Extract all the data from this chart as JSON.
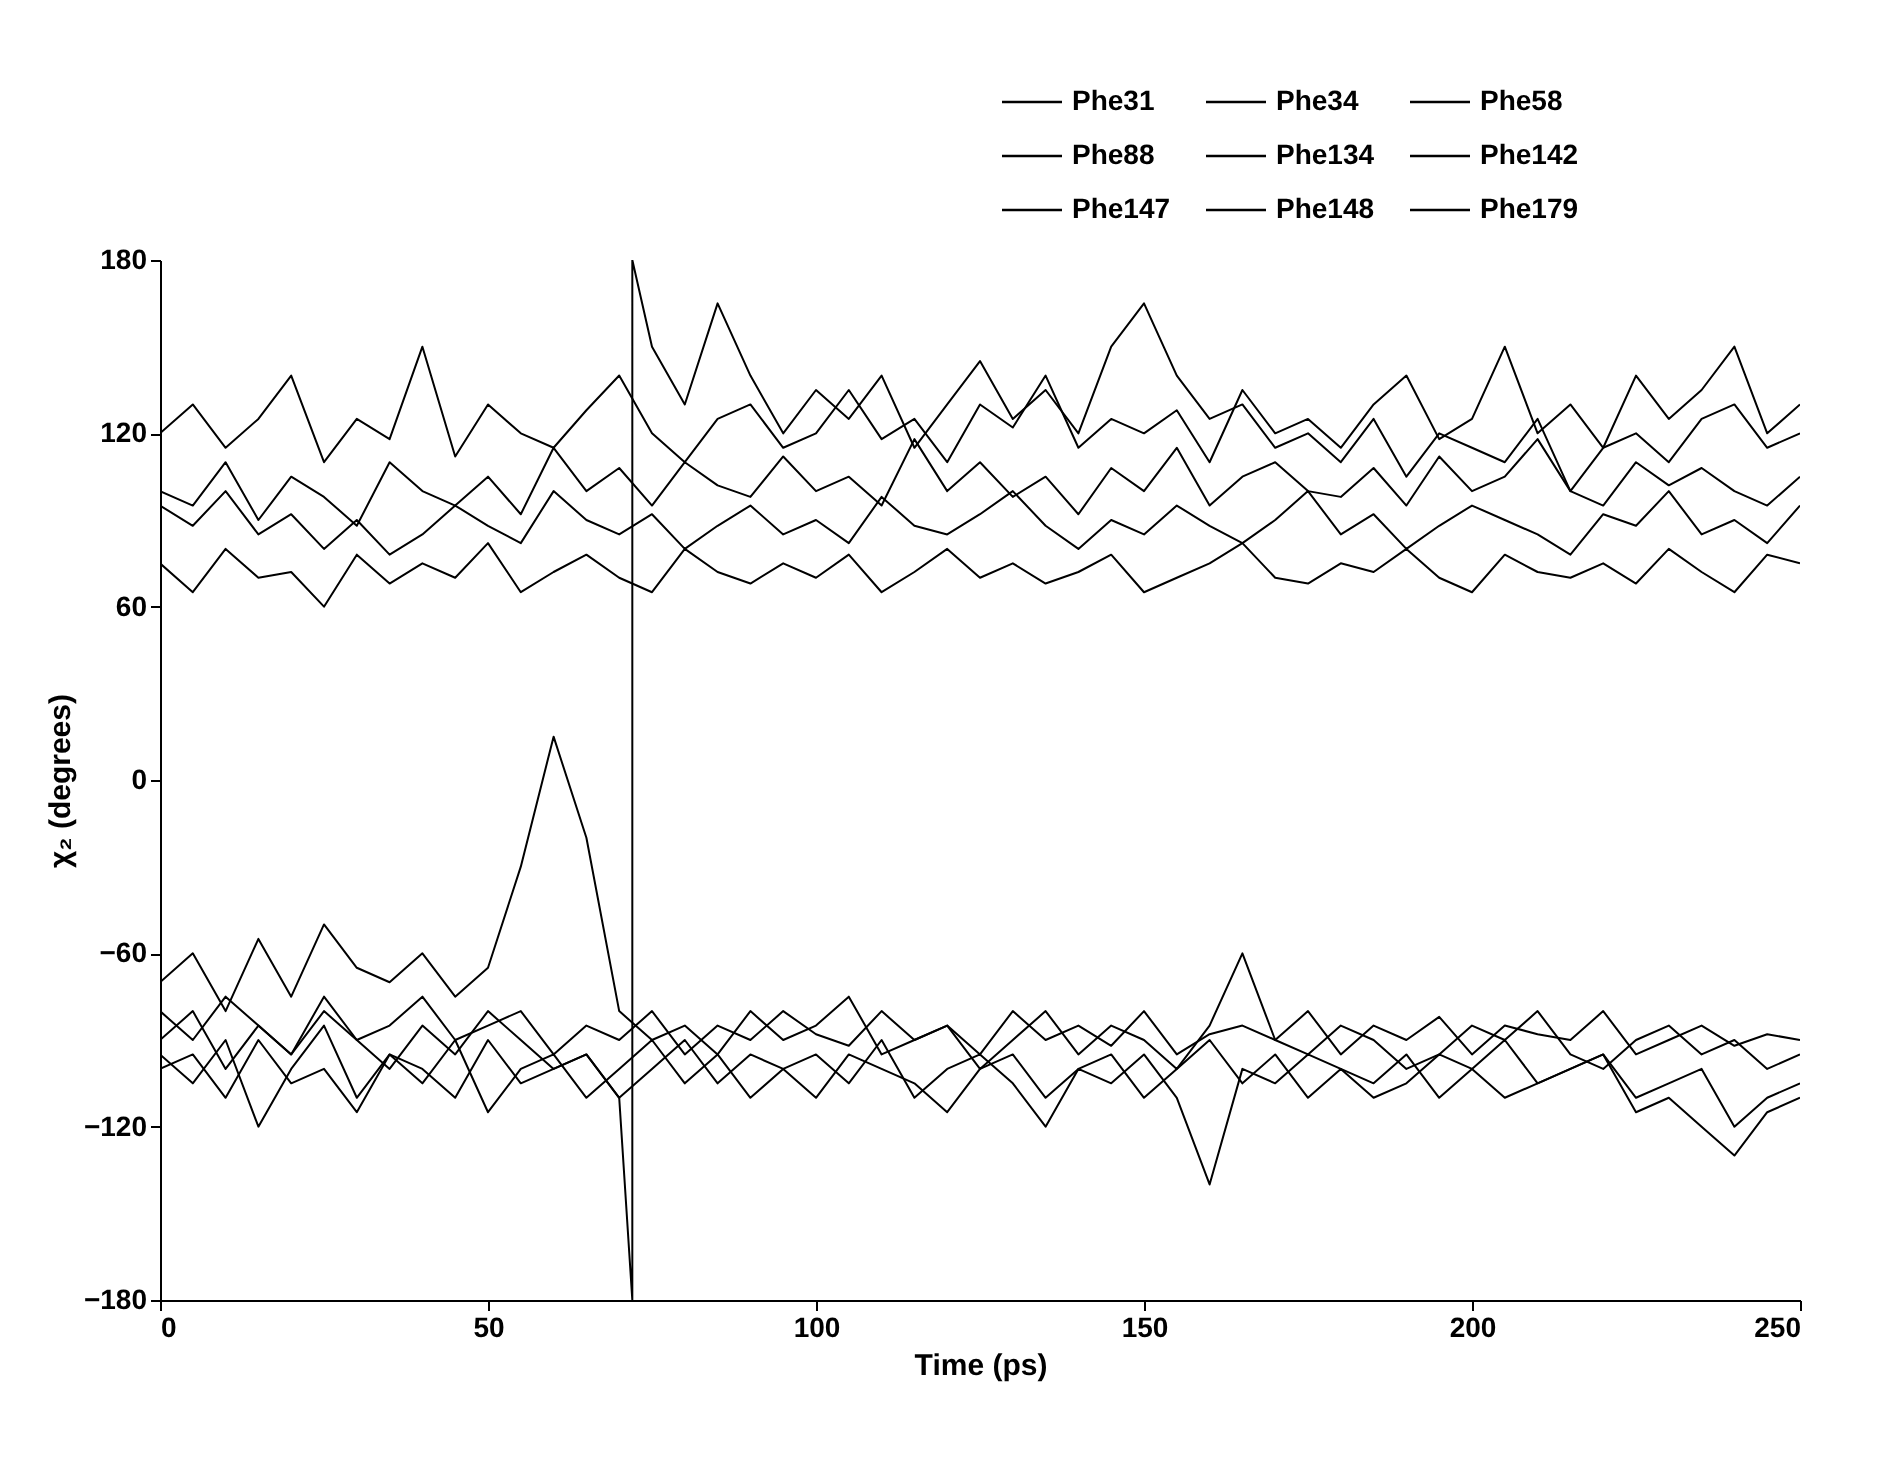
{
  "chart_data": {
    "type": "line",
    "xlabel": "Time (ps)",
    "ylabel": "χ₂ (degrees)",
    "x": [
      0,
      5,
      10,
      15,
      20,
      25,
      30,
      35,
      40,
      45,
      50,
      55,
      60,
      65,
      70,
      75,
      80,
      85,
      90,
      95,
      100,
      105,
      110,
      115,
      120,
      125,
      130,
      135,
      140,
      145,
      150,
      155,
      160,
      165,
      170,
      175,
      180,
      185,
      190,
      195,
      200,
      205,
      210,
      215,
      220,
      225,
      230,
      235,
      240,
      245,
      250
    ],
    "xlim": [
      0,
      250
    ],
    "xticks": [
      0,
      50,
      100,
      150,
      200,
      250
    ],
    "ylim": [
      -180,
      180
    ],
    "yticks": [
      -180,
      -120,
      -60,
      0,
      60,
      120,
      180
    ],
    "grid": false,
    "legend": "top right",
    "marker": "none",
    "series": [
      {
        "name": "Phe31",
        "color": "#000000",
        "values": [
          95,
          88,
          100,
          85,
          92,
          80,
          90,
          78,
          85,
          95,
          88,
          82,
          100,
          90,
          85,
          92,
          80,
          88,
          95,
          85,
          90,
          82,
          98,
          88,
          85,
          92,
          100,
          88,
          80,
          90,
          85,
          95,
          88,
          82,
          90,
          100,
          85,
          92,
          80,
          88,
          95,
          90,
          85,
          78,
          92,
          88,
          100,
          85,
          90,
          82,
          95
        ]
      },
      {
        "name": "Phe34",
        "color": "#000000",
        "values": [
          -70,
          -60,
          -80,
          -55,
          -75,
          -50,
          -65,
          -70,
          -60,
          -75,
          -65,
          -30,
          15,
          -20,
          -80,
          -90,
          -85,
          -95,
          -80,
          -90,
          -85,
          -75,
          -95,
          -90,
          -85,
          -100,
          -90,
          -80,
          -95,
          -85,
          -90,
          -100,
          -85,
          -60,
          -90,
          -95,
          -85,
          -90,
          -100,
          -95,
          -85,
          -90,
          -80,
          -95,
          -100,
          -90,
          -85,
          -95,
          -90,
          -100,
          -95
        ]
      },
      {
        "name": "Phe58",
        "color": "#000000",
        "values": [
          120,
          130,
          115,
          125,
          140,
          110,
          125,
          118,
          150,
          112,
          130,
          120,
          115,
          128,
          140,
          120,
          110,
          125,
          130,
          115,
          120,
          135,
          118,
          125,
          110,
          130,
          122,
          140,
          115,
          125,
          120,
          128,
          110,
          135,
          120,
          125,
          115,
          130,
          140,
          118,
          125,
          150,
          120,
          130,
          115,
          140,
          125,
          135,
          150,
          120,
          130
        ]
      },
      {
        "name": "Phe88",
        "color": "#000000",
        "values": [
          -100,
          -95,
          -110,
          -90,
          -105,
          -100,
          -115,
          -95,
          -100,
          -110,
          -90,
          -105,
          -100,
          -95,
          -110,
          -100,
          -90,
          -105,
          -95,
          -100,
          -110,
          -95,
          -100,
          -105,
          -115,
          -100,
          -95,
          -110,
          -100,
          -105,
          -95,
          -110,
          -140,
          -100,
          -105,
          -95,
          -100,
          -110,
          -105,
          -95,
          -100,
          -110,
          -105,
          -100,
          -95,
          -115,
          -110,
          -120,
          -130,
          -115,
          -110
        ]
      },
      {
        "name": "Phe134",
        "color": "#000000",
        "values": [
          75,
          65,
          80,
          70,
          72,
          60,
          78,
          68,
          75,
          70,
          82,
          65,
          72,
          78,
          70,
          65,
          80,
          72,
          68,
          75,
          70,
          78,
          65,
          72,
          80,
          70,
          75,
          68,
          72,
          78,
          65,
          70,
          75,
          82,
          70,
          68,
          75,
          72,
          80,
          70,
          65,
          78,
          72,
          70,
          75,
          68,
          80,
          72,
          65,
          78,
          75
        ]
      },
      {
        "name": "Phe142",
        "color": "#000000",
        "values": [
          -80,
          -90,
          -75,
          -85,
          -95,
          -80,
          -90,
          -85,
          -75,
          -90,
          -85,
          -80,
          -95,
          -85,
          -90,
          -80,
          -95,
          -85,
          -90,
          -80,
          -88,
          -92,
          -80,
          -90,
          -85,
          -95,
          -80,
          -90,
          -85,
          -92,
          -80,
          -95,
          -88,
          -85,
          -90,
          -80,
          -95,
          -85,
          -90,
          -82,
          -95,
          -85,
          -88,
          -90,
          -80,
          -95,
          -90,
          -85,
          -92,
          -88,
          -90
        ]
      },
      {
        "name": "Phe147",
        "color": "#000000",
        "values": [
          100,
          95,
          110,
          90,
          105,
          98,
          88,
          110,
          100,
          95,
          105,
          92,
          115,
          100,
          108,
          95,
          110,
          102,
          98,
          112,
          100,
          105,
          95,
          118,
          100,
          110,
          98,
          105,
          92,
          108,
          100,
          115,
          95,
          105,
          110,
          100,
          98,
          108,
          95,
          112,
          100,
          105,
          118,
          100,
          95,
          110,
          102,
          108,
          100,
          95,
          105
        ]
      },
      {
        "name": "Phe148",
        "color": "#000000",
        "values": [
          -95,
          -105,
          -90,
          -120,
          -100,
          -85,
          -110,
          -95,
          -105,
          -90,
          -115,
          -100,
          -95,
          -110,
          -100,
          -90,
          -105,
          -95,
          -110,
          -100,
          -95,
          -105,
          -90,
          -110,
          -100,
          -95,
          -105,
          -120,
          -100,
          -95,
          -110,
          -100,
          -90,
          -105,
          -95,
          -110,
          -100,
          -105,
          -95,
          -110,
          -100,
          -90,
          -105,
          -100,
          -95,
          -110,
          -105,
          -100,
          -120,
          -110,
          -105
        ]
      },
      {
        "name": "Phe179",
        "color": "#000000",
        "x": [
          0,
          5,
          10,
          15,
          20,
          25,
          30,
          35,
          40,
          45,
          50,
          55,
          60,
          65,
          70,
          72,
          72,
          75,
          80,
          85,
          90,
          95,
          100,
          105,
          110,
          115,
          120,
          125,
          130,
          135,
          140,
          145,
          150,
          155,
          160,
          165,
          170,
          175,
          180,
          185,
          190,
          195,
          200,
          205,
          210,
          215,
          220,
          225,
          230,
          235,
          240,
          245,
          250
        ],
        "values": [
          -90,
          -80,
          -100,
          -85,
          -95,
          -75,
          -90,
          -100,
          -85,
          -95,
          -80,
          -90,
          -100,
          -95,
          -110,
          -180,
          180,
          150,
          130,
          165,
          140,
          120,
          135,
          125,
          140,
          115,
          130,
          145,
          125,
          135,
          120,
          150,
          165,
          140,
          125,
          130,
          115,
          120,
          110,
          125,
          105,
          120,
          115,
          110,
          125,
          100,
          115,
          120,
          110,
          125,
          130,
          115,
          120
        ]
      }
    ]
  }
}
